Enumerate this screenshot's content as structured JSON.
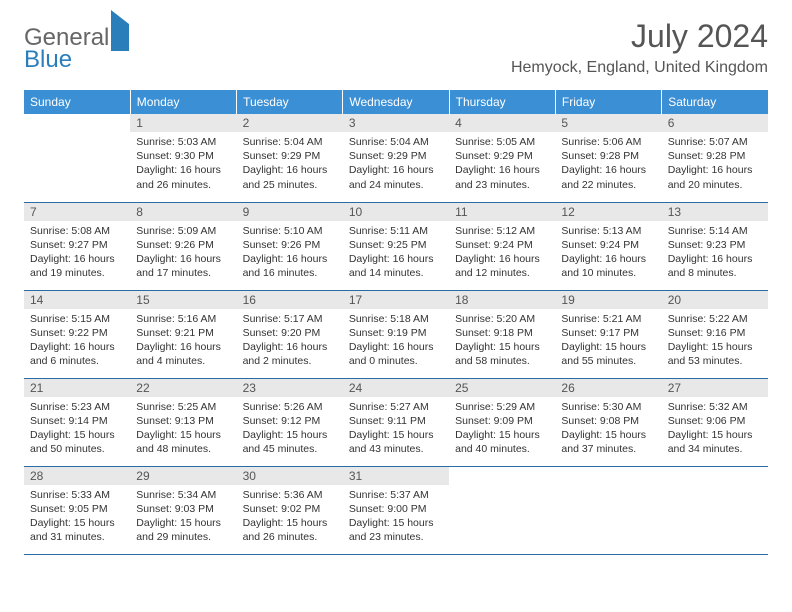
{
  "brand": {
    "part1": "General",
    "part2": "Blue"
  },
  "title": "July 2024",
  "location": "Hemyock, England, United Kingdom",
  "colors": {
    "header_bg": "#3b8fd4",
    "border": "#2a6ca8",
    "daynum_bg": "#e8e8e8",
    "brand_gray": "#666",
    "brand_blue": "#2a7fba"
  },
  "dayHeaders": [
    "Sunday",
    "Monday",
    "Tuesday",
    "Wednesday",
    "Thursday",
    "Friday",
    "Saturday"
  ],
  "weeks": [
    [
      null,
      {
        "n": "1",
        "sunrise": "5:03 AM",
        "sunset": "9:30 PM",
        "daylight": "16 hours and 26 minutes."
      },
      {
        "n": "2",
        "sunrise": "5:04 AM",
        "sunset": "9:29 PM",
        "daylight": "16 hours and 25 minutes."
      },
      {
        "n": "3",
        "sunrise": "5:04 AM",
        "sunset": "9:29 PM",
        "daylight": "16 hours and 24 minutes."
      },
      {
        "n": "4",
        "sunrise": "5:05 AM",
        "sunset": "9:29 PM",
        "daylight": "16 hours and 23 minutes."
      },
      {
        "n": "5",
        "sunrise": "5:06 AM",
        "sunset": "9:28 PM",
        "daylight": "16 hours and 22 minutes."
      },
      {
        "n": "6",
        "sunrise": "5:07 AM",
        "sunset": "9:28 PM",
        "daylight": "16 hours and 20 minutes."
      }
    ],
    [
      {
        "n": "7",
        "sunrise": "5:08 AM",
        "sunset": "9:27 PM",
        "daylight": "16 hours and 19 minutes."
      },
      {
        "n": "8",
        "sunrise": "5:09 AM",
        "sunset": "9:26 PM",
        "daylight": "16 hours and 17 minutes."
      },
      {
        "n": "9",
        "sunrise": "5:10 AM",
        "sunset": "9:26 PM",
        "daylight": "16 hours and 16 minutes."
      },
      {
        "n": "10",
        "sunrise": "5:11 AM",
        "sunset": "9:25 PM",
        "daylight": "16 hours and 14 minutes."
      },
      {
        "n": "11",
        "sunrise": "5:12 AM",
        "sunset": "9:24 PM",
        "daylight": "16 hours and 12 minutes."
      },
      {
        "n": "12",
        "sunrise": "5:13 AM",
        "sunset": "9:24 PM",
        "daylight": "16 hours and 10 minutes."
      },
      {
        "n": "13",
        "sunrise": "5:14 AM",
        "sunset": "9:23 PM",
        "daylight": "16 hours and 8 minutes."
      }
    ],
    [
      {
        "n": "14",
        "sunrise": "5:15 AM",
        "sunset": "9:22 PM",
        "daylight": "16 hours and 6 minutes."
      },
      {
        "n": "15",
        "sunrise": "5:16 AM",
        "sunset": "9:21 PM",
        "daylight": "16 hours and 4 minutes."
      },
      {
        "n": "16",
        "sunrise": "5:17 AM",
        "sunset": "9:20 PM",
        "daylight": "16 hours and 2 minutes."
      },
      {
        "n": "17",
        "sunrise": "5:18 AM",
        "sunset": "9:19 PM",
        "daylight": "16 hours and 0 minutes."
      },
      {
        "n": "18",
        "sunrise": "5:20 AM",
        "sunset": "9:18 PM",
        "daylight": "15 hours and 58 minutes."
      },
      {
        "n": "19",
        "sunrise": "5:21 AM",
        "sunset": "9:17 PM",
        "daylight": "15 hours and 55 minutes."
      },
      {
        "n": "20",
        "sunrise": "5:22 AM",
        "sunset": "9:16 PM",
        "daylight": "15 hours and 53 minutes."
      }
    ],
    [
      {
        "n": "21",
        "sunrise": "5:23 AM",
        "sunset": "9:14 PM",
        "daylight": "15 hours and 50 minutes."
      },
      {
        "n": "22",
        "sunrise": "5:25 AM",
        "sunset": "9:13 PM",
        "daylight": "15 hours and 48 minutes."
      },
      {
        "n": "23",
        "sunrise": "5:26 AM",
        "sunset": "9:12 PM",
        "daylight": "15 hours and 45 minutes."
      },
      {
        "n": "24",
        "sunrise": "5:27 AM",
        "sunset": "9:11 PM",
        "daylight": "15 hours and 43 minutes."
      },
      {
        "n": "25",
        "sunrise": "5:29 AM",
        "sunset": "9:09 PM",
        "daylight": "15 hours and 40 minutes."
      },
      {
        "n": "26",
        "sunrise": "5:30 AM",
        "sunset": "9:08 PM",
        "daylight": "15 hours and 37 minutes."
      },
      {
        "n": "27",
        "sunrise": "5:32 AM",
        "sunset": "9:06 PM",
        "daylight": "15 hours and 34 minutes."
      }
    ],
    [
      {
        "n": "28",
        "sunrise": "5:33 AM",
        "sunset": "9:05 PM",
        "daylight": "15 hours and 31 minutes."
      },
      {
        "n": "29",
        "sunrise": "5:34 AM",
        "sunset": "9:03 PM",
        "daylight": "15 hours and 29 minutes."
      },
      {
        "n": "30",
        "sunrise": "5:36 AM",
        "sunset": "9:02 PM",
        "daylight": "15 hours and 26 minutes."
      },
      {
        "n": "31",
        "sunrise": "5:37 AM",
        "sunset": "9:00 PM",
        "daylight": "15 hours and 23 minutes."
      },
      null,
      null,
      null
    ]
  ]
}
